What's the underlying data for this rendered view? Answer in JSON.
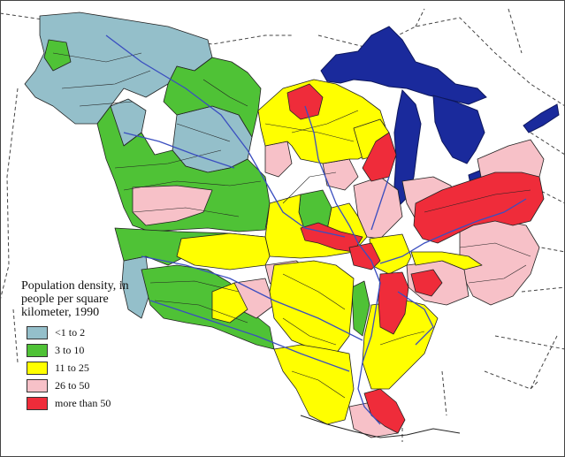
{
  "legend": {
    "title": "Population density, in people per square kilometer, 1990",
    "items": [
      {
        "label": "<1 to 2",
        "color": "#94bfca",
        "key": "blue"
      },
      {
        "label": "3 to 10",
        "color": "#4fc236",
        "key": "green"
      },
      {
        "label": "11 to 25",
        "color": "#ffff00",
        "key": "yellow"
      },
      {
        "label": "26 to 50",
        "color": "#f7c1c8",
        "key": "pink"
      },
      {
        "label": "more than 50",
        "color": "#ef2c3a",
        "key": "red"
      }
    ]
  },
  "colors": {
    "water": "#1a2a9c",
    "river": "#3a4ec0",
    "boundary": "#222222",
    "dashed_border": "#333333"
  }
}
